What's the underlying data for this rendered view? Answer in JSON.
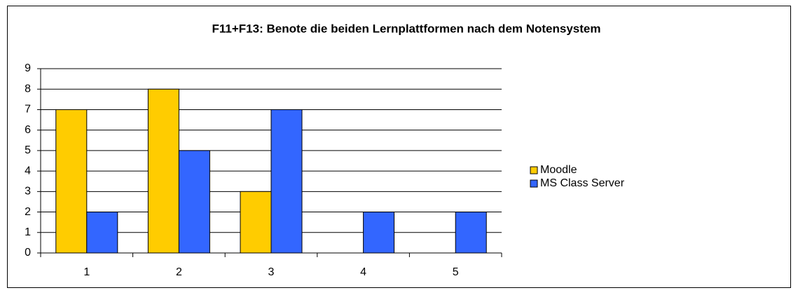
{
  "chart_data": {
    "type": "bar",
    "title": "F11+F13: Benote die beiden Lernplattformen nach dem Notensystem",
    "categories": [
      "1",
      "2",
      "3",
      "4",
      "5"
    ],
    "series": [
      {
        "name": "Moodle",
        "color": "#ffcc00",
        "values": [
          7,
          8,
          3,
          0,
          0
        ]
      },
      {
        "name": "MS Class Server",
        "color": "#3366ff",
        "values": [
          2,
          5,
          7,
          2,
          2
        ]
      }
    ],
    "ylim": [
      0,
      9
    ],
    "yticks": [
      0,
      1,
      2,
      3,
      4,
      5,
      6,
      7,
      8,
      9
    ],
    "grid": true,
    "legend": "right"
  }
}
